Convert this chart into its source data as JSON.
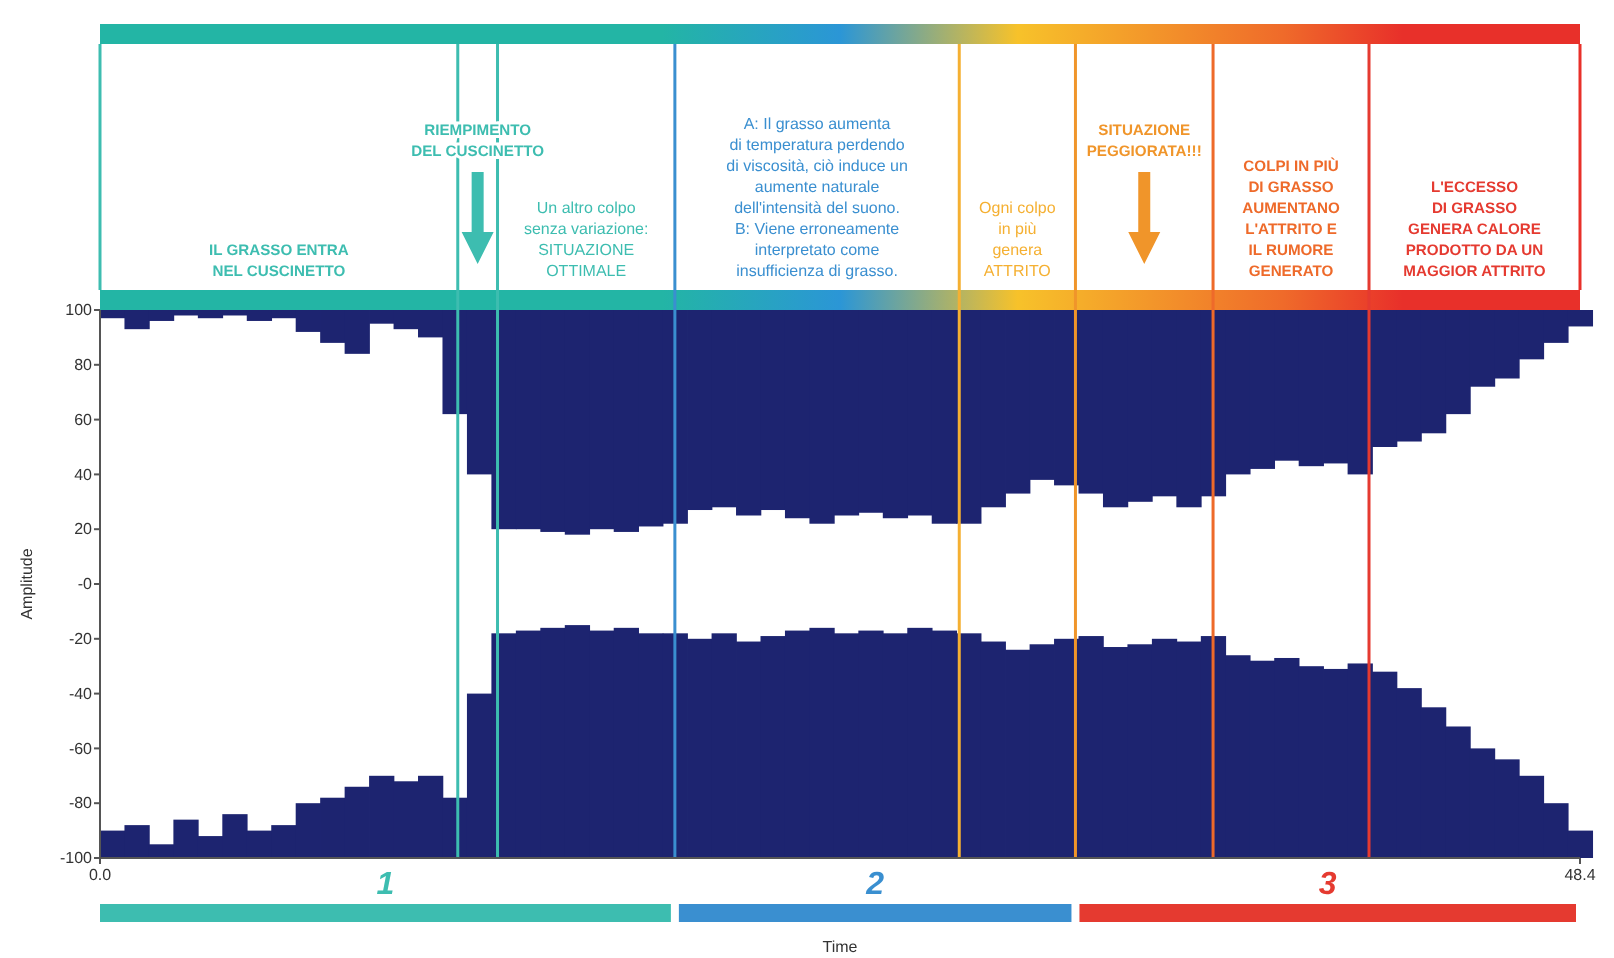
{
  "chart_data": {
    "type": "bar",
    "xlabel": "Time",
    "ylabel": "Amplitude",
    "x": [
      0,
      0.8,
      1.6,
      2.4,
      3.2,
      4.0,
      4.8,
      5.6,
      6.4,
      7.2,
      8.0,
      8.8,
      9.6,
      10.4,
      11.2,
      12.0,
      12.8,
      13.6,
      14.4,
      15.2,
      16.0,
      16.8,
      17.6,
      18.4,
      19.2,
      20.0,
      20.8,
      21.6,
      22.4,
      23.2,
      24.0,
      24.8,
      25.6,
      26.4,
      27.2,
      28.0,
      28.8,
      29.6,
      30.4,
      31.2,
      32.0,
      32.8,
      33.6,
      34.4,
      35.2,
      36.0,
      36.8,
      37.6,
      38.4,
      39.2,
      40.0,
      40.8,
      41.6,
      42.4,
      43.2,
      44.0,
      44.8,
      45.6,
      46.4,
      47.2,
      48.0
    ],
    "series": [
      {
        "color": "#1d2470",
        "base": [
          100,
          100,
          100,
          100,
          100,
          100,
          100,
          100,
          100,
          100,
          100,
          100,
          100,
          100,
          100,
          100,
          100,
          100,
          100,
          100,
          100,
          100,
          100,
          100,
          100,
          100,
          100,
          100,
          100,
          100,
          100,
          100,
          100,
          100,
          100,
          100,
          100,
          100,
          100,
          100,
          100,
          100,
          100,
          100,
          100,
          100,
          100,
          100,
          100,
          100,
          100,
          100,
          100,
          100,
          100,
          100,
          100,
          100,
          100,
          100,
          100
        ],
        "values": [
          -3,
          -7,
          -4,
          -2,
          -3,
          -2,
          -4,
          -3,
          -8,
          -12,
          -16,
          -5,
          -7,
          -10,
          -38,
          -60,
          -80,
          -80,
          -81,
          -82,
          -80,
          -81,
          -79,
          -78,
          -73,
          -72,
          -75,
          -73,
          -76,
          -78,
          -75,
          -74,
          -76,
          -75,
          -78,
          -78,
          -72,
          -67,
          -62,
          -64,
          -67,
          -72,
          -70,
          -68,
          -72,
          -68,
          -60,
          -58,
          -55,
          -57,
          -56,
          -60,
          -50,
          -48,
          -45,
          -38,
          -28,
          -25,
          -18,
          -12,
          -6
        ]
      },
      {
        "color": "#1d2470",
        "base": [
          -100,
          -100,
          -100,
          -100,
          -100,
          -100,
          -100,
          -100,
          -100,
          -100,
          -100,
          -100,
          -100,
          -100,
          -100,
          -100,
          -100,
          -100,
          -100,
          -100,
          -100,
          -100,
          -100,
          -100,
          -100,
          -100,
          -100,
          -100,
          -100,
          -100,
          -100,
          -100,
          -100,
          -100,
          -100,
          -100,
          -100,
          -100,
          -100,
          -100,
          -100,
          -100,
          -100,
          -100,
          -100,
          -100,
          -100,
          -100,
          -100,
          -100,
          -100,
          -100,
          -100,
          -100,
          -100,
          -100,
          -100,
          -100,
          -100,
          -100,
          -100
        ],
        "values": [
          10,
          12,
          5,
          14,
          8,
          16,
          10,
          12,
          20,
          22,
          26,
          30,
          28,
          30,
          22,
          60,
          82,
          83,
          84,
          85,
          83,
          84,
          82,
          82,
          80,
          82,
          79,
          81,
          83,
          84,
          82,
          83,
          82,
          84,
          83,
          82,
          79,
          76,
          78,
          80,
          81,
          77,
          78,
          80,
          79,
          81,
          74,
          72,
          73,
          70,
          69,
          71,
          68,
          62,
          55,
          48,
          40,
          36,
          30,
          20,
          10
        ]
      }
    ],
    "xlim": [
      0,
      48.4
    ],
    "ylim": [
      -100,
      100
    ],
    "xticks": [
      {
        "value": 0,
        "label": "0.0"
      },
      48.4
    ],
    "yticks": [
      100,
      80,
      60,
      40,
      20,
      {
        "value": 0,
        "label": "-0"
      },
      -20,
      -40,
      -60,
      -80,
      -100
    ],
    "ref_lines": [
      {
        "axis": "x",
        "value": 11.7,
        "color": "#3dbdb0"
      },
      {
        "axis": "x",
        "value": 13.0,
        "color": "#3dbdb0"
      },
      {
        "axis": "x",
        "value": 18.8,
        "color": "#3a8fd0"
      },
      {
        "axis": "x",
        "value": 28.1,
        "color": "#f5b032"
      },
      {
        "axis": "x",
        "value": 31.9,
        "color": "#f0952a"
      },
      {
        "axis": "x",
        "value": 36.4,
        "color": "#ee6a2a"
      },
      {
        "axis": "x",
        "value": 41.5,
        "color": "#e53a30"
      }
    ],
    "annotations": [
      "IL GRASSO ENTRA\nNEL CUSCINETTO",
      "RIEMPIMENTO\nDEL CUSCINETTO",
      "Un altro colpo\nsenza variazione:\nSITUAZIONE\nOTTIMALE",
      "A: Il grasso aumenta\ndi temperatura perdendo\ndi viscosità, ciò induce un\naumente naturale\ndell'intensità del suono.\nB: Viene erroneamente\ninterpretato come\ninsufficienza di grasso.",
      "Ogni colpo\nin più\ngenera\nATTRITO",
      "SITUAZIONE\nPEGGIORATA!!!",
      "COLPI IN PIÙ\nDI GRASSO\nAUMENTANO\nL'ATTRITO E\nIL RUMORE\nGENERATO",
      "L'ECCESSO\nDI GRASSO\nGENERA CALORE\nPRODOTTO DA UN\nMAGGIOR ATTRITO",
      "1",
      "2",
      "3"
    ]
  }
}
